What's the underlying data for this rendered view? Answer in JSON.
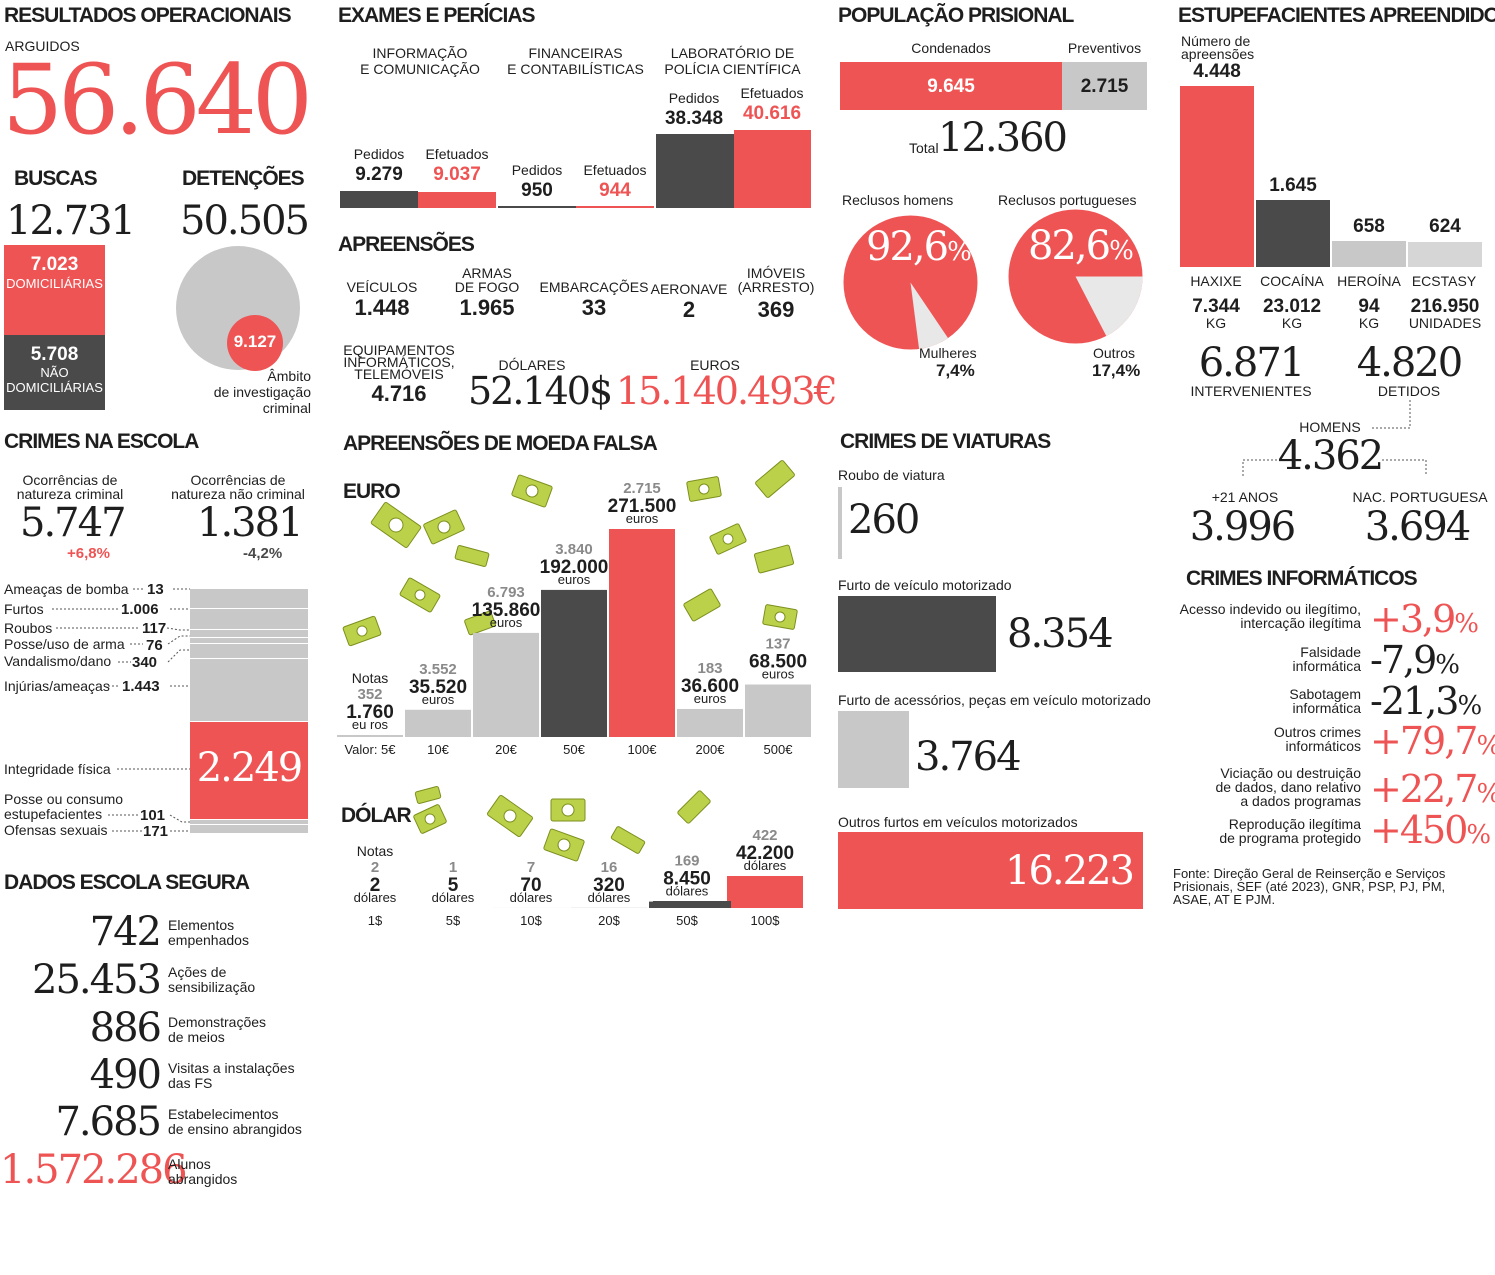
{
  "colors": {
    "red": "#ef5454",
    "dark": "#4a4a4a",
    "light": "#c8c8c8",
    "text": "#1e1e1e",
    "grey": "#8a8a8a"
  },
  "resultados": {
    "title": "RESULTADOS OPERACIONAIS",
    "arguidos_label": "ARGUIDOS",
    "arguidos_value": "56.640",
    "buscas_title": "BUSCAS",
    "buscas_total": "12.731",
    "buscas_dom_value": "7.023",
    "buscas_dom_label": "DOMICILIÁRIAS",
    "buscas_nao_value": "5.708",
    "buscas_nao_label1": "NÃO",
    "buscas_nao_label2": "DOMICILIÁRIAS",
    "detencoes_title": "DETENÇÕES",
    "detencoes_total": "50.505",
    "detencoes_ambito_value": "9.127",
    "detencoes_ambito_label1": "Âmbito",
    "detencoes_ambito_label2": "de investigação",
    "detencoes_ambito_label3": "criminal"
  },
  "exames": {
    "title": "EXAMES E PERÍCIAS",
    "groups": [
      {
        "title1": "INFORMAÇÃO",
        "title2": "E COMUNICAÇÃO",
        "pedidos_label": "Pedidos",
        "pedidos": "9.279",
        "efetuados_label": "Efetuados",
        "efetuados": "9.037"
      },
      {
        "title1": "FINANCEIRAS",
        "title2": "E CONTABILÍSTICAS",
        "pedidos_label": "Pedidos",
        "pedidos": "950",
        "efetuados_label": "Efetuados",
        "efetuados": "944"
      },
      {
        "title1": "LABORATÓRIO DE",
        "title2": "POLÍCIA CIENTÍFICA",
        "pedidos_label": "Pedidos",
        "pedidos": "38.348",
        "efetuados_label": "Efetuados",
        "efetuados": "40.616"
      }
    ]
  },
  "apreensoes": {
    "title": "APREENSÕES",
    "items": [
      {
        "label1": "",
        "label2": "VEÍCULOS",
        "value": "1.448"
      },
      {
        "label1": "ARMAS",
        "label2": "DE FOGO",
        "value": "1.965"
      },
      {
        "label1": "",
        "label2": "EMBARCAÇÕES",
        "value": "33"
      },
      {
        "label1": "",
        "label2": "AERONAVE",
        "value": "2"
      },
      {
        "label1": "IMÓVEIS",
        "label2": "(ARRESTO)",
        "value": "369"
      }
    ],
    "equip_label1": "EQUIPAMENTOS",
    "equip_label2": "INFORMÁTICOS,",
    "equip_label3": "TELEMÓVEIS",
    "equip_value": "4.716",
    "dolares_label": "DÓLARES",
    "dolares_value": "52.140$",
    "euros_label": "EUROS",
    "euros_value": "15.140.493€"
  },
  "populacao": {
    "title": "POPULAÇÃO PRISIONAL",
    "condenados_label": "Condenados",
    "condenados_value": "9.645",
    "preventivos_label": "Preventivos",
    "preventivos_value": "2.715",
    "total_label": "Total",
    "total_value": "12.360",
    "homens_label": "Reclusos homens",
    "homens_pct": "92,6",
    "pct_sign": "%",
    "mulheres_label": "Mulheres",
    "mulheres_pct": "7,4%",
    "portugueses_label": "Reclusos portugueses",
    "portugueses_pct": "82,6",
    "outros_label": "Outros",
    "outros_pct": "17,4%"
  },
  "estupefacientes": {
    "title": "ESTUPEFACIENTES APREENDIDOS",
    "apreensoes_label1": "Número de",
    "apreensoes_label2": "apreensões",
    "drugs": [
      {
        "name": "HAXIXE",
        "count": "4.448",
        "qty": "7.344",
        "unit": "KG"
      },
      {
        "name": "COCAÍNA",
        "count": "1.645",
        "qty": "23.012",
        "unit": "KG"
      },
      {
        "name": "HEROÍNA",
        "count": "658",
        "qty": "94",
        "unit": "KG"
      },
      {
        "name": "ECSTASY",
        "count": "624",
        "qty": "216.950",
        "unit": "UNIDADES"
      }
    ],
    "intervenientes_value": "6.871",
    "intervenientes_label": "INTERVENIENTES",
    "detidos_value": "4.820",
    "detidos_label": "DETIDOS",
    "homens_label": "HOMENS",
    "homens_value": "4.362",
    "mais21_label": "+21 ANOS",
    "mais21_value": "3.996",
    "nacpt_label": "NAC. PORTUGUESA",
    "nacpt_value": "3.694"
  },
  "escola": {
    "title": "CRIMES NA ESCOLA",
    "crim_label1": "Ocorrências de",
    "crim_label2": "natureza criminal",
    "crim_value": "5.747",
    "crim_change": "+6,8%",
    "nao_label1": "Ocorrências de",
    "nao_label2": "natureza não criminal",
    "nao_value": "1.381",
    "nao_change": "-4,2%",
    "items": [
      {
        "label": "Ameaças de bomba",
        "value": "13"
      },
      {
        "label": "Furtos",
        "value": "1.006"
      },
      {
        "label": "Roubos",
        "value": "117"
      },
      {
        "label": "Posse/uso de arma",
        "value": "76"
      },
      {
        "label": "Vandalismo/dano",
        "value": "340"
      },
      {
        "label": "Injúrias/ameaças",
        "value": "1.443"
      },
      {
        "label": "Integridade física",
        "value": "2.249"
      },
      {
        "label": "Posse ou consumo estupefacientes",
        "value": "101"
      },
      {
        "label": "Ofensas sexuais",
        "value": "171"
      }
    ],
    "posse_label1": "Posse ou consumo",
    "posse_label2": "estupefacientes"
  },
  "escola_segura": {
    "title": "DADOS ESCOLA SEGURA",
    "items": [
      {
        "value": "742",
        "label1": "Elementos",
        "label2": "empenhados"
      },
      {
        "value": "25.453",
        "label1": "Ações de",
        "label2": "sensibilização"
      },
      {
        "value": "886",
        "label1": "Demonstrações",
        "label2": "de meios"
      },
      {
        "value": "490",
        "label1": "Visitas a instalações",
        "label2": "das FS"
      },
      {
        "value": "7.685",
        "label1": "Estabelecimentos",
        "label2": "de ensino abrangidos"
      },
      {
        "value": "1.572.286",
        "label1": "Alunos",
        "label2": "abrangidos"
      }
    ]
  },
  "moeda": {
    "title": "APREENSÕES DE MOEDA FALSA",
    "euro_title": "EURO",
    "notas_label": "Notas",
    "valor_label": "Valor: 5€",
    "euro_unit": "euros",
    "euro_unit_split": "eu ros",
    "dolar_title": "DÓLAR",
    "dolar_unit": "dólares"
  },
  "chart_data": [
    {
      "type": "bar",
      "title": "EURO",
      "categories": [
        "5€",
        "10€",
        "20€",
        "50€",
        "100€",
        "200€",
        "500€"
      ],
      "notes": [
        352,
        3552,
        6793,
        3840,
        2715,
        183,
        137
      ],
      "values": [
        1760,
        35520,
        135860,
        192000,
        271500,
        36600,
        68500
      ],
      "notes_labels": [
        "352",
        "3.552",
        "6.793",
        "3.840",
        "2.715",
        "183",
        "137"
      ],
      "value_labels": [
        "1.760",
        "35.520",
        "135.860",
        "192.000",
        "271.500",
        "36.600",
        "68.500"
      ],
      "ylim": [
        0,
        271500
      ]
    },
    {
      "type": "bar",
      "title": "DÓLAR",
      "categories": [
        "1$",
        "5$",
        "10$",
        "20$",
        "50$",
        "100$"
      ],
      "notes": [
        2,
        1,
        7,
        16,
        169,
        422
      ],
      "values": [
        2,
        5,
        70,
        320,
        8450,
        42200
      ],
      "notes_labels": [
        "2",
        "1",
        "7",
        "16",
        "169",
        "422"
      ],
      "value_labels": [
        "2",
        "5",
        "70",
        "320",
        "8.450",
        "42.200"
      ],
      "ylim": [
        0,
        42200
      ]
    }
  ],
  "viaturas": {
    "title": "CRIMES DE VIATURAS",
    "items": [
      {
        "label": "Roubo de viatura",
        "value": "260"
      },
      {
        "label": "Furto de veículo motorizado",
        "value": "8.354"
      },
      {
        "label": "Furto de acessórios, peças em veículo motorizado",
        "value": "3.764"
      },
      {
        "label": "Outros furtos em veículos motorizados",
        "value": "16.223"
      }
    ]
  },
  "informaticos": {
    "title": "CRIMES INFORMÁTICOS",
    "items": [
      {
        "label1": "Acesso indevido ou ilegítimo,",
        "label2": "intercação ilegítima",
        "label3": "",
        "value": "+3,9",
        "sign": "%"
      },
      {
        "label1": "Falsidade",
        "label2": "informática",
        "label3": "",
        "value": "-7,9",
        "sign": "%"
      },
      {
        "label1": "Sabotagem",
        "label2": "informática",
        "label3": "",
        "value": "-21,3",
        "sign": "%"
      },
      {
        "label1": "Outros crimes",
        "label2": "informáticos",
        "label3": "",
        "value": "+79,7",
        "sign": "%"
      },
      {
        "label1": "Viciação ou destruição",
        "label2": "de dados, dano relativo",
        "label3": "a dados programas",
        "value": "+22,7",
        "sign": "%"
      },
      {
        "label1": "Reprodução ilegítima",
        "label2": "de programa protegido",
        "label3": "",
        "value": "+450",
        "sign": "%"
      }
    ]
  },
  "fonte": {
    "line1": "Fonte: Direção Geral de Reinserção e Serviços",
    "line2": "Prisionais, SEF (até 2023), GNR, PSP, PJ, PM,",
    "line3": "ASAE, AT E PJM."
  }
}
